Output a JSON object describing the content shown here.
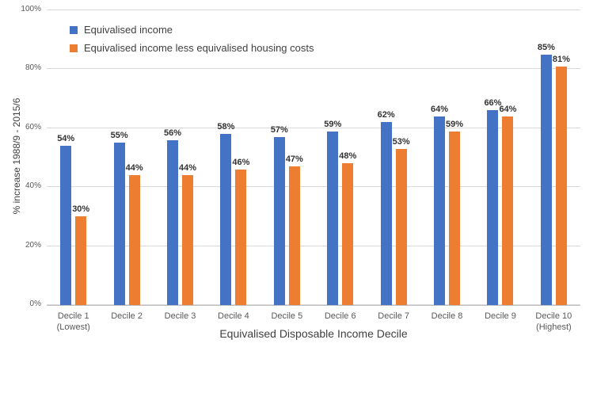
{
  "chart_data": {
    "type": "bar",
    "title": "",
    "xlabel": "Equivalised Disposable Income Decile",
    "ylabel": "% increase 1988/9 - 2015/6",
    "categories": [
      "Decile 1\n(Lowest)",
      "Decile 2",
      "Decile 3",
      "Decile 4",
      "Decile 5",
      "Decile 6",
      "Decile 7",
      "Decile 8",
      "Decile 9",
      "Decile 10\n(Highest)"
    ],
    "series": [
      {
        "name": "Equivalised income",
        "color": "#4472C4",
        "values": [
          54,
          55,
          56,
          58,
          57,
          59,
          62,
          64,
          66,
          85
        ]
      },
      {
        "name": "Equivalised income less equivalised housing costs",
        "color": "#ED7D31",
        "values": [
          30,
          44,
          44,
          46,
          47,
          48,
          53,
          59,
          64,
          81
        ]
      }
    ],
    "y_ticks": [
      0,
      20,
      40,
      60,
      80,
      100
    ],
    "y_tick_suffix": "%",
    "data_label_suffix": "%",
    "ylim": [
      0,
      100
    ],
    "grid": "horizontal",
    "legend_position": "top-left"
  },
  "colors": {
    "background": "#FFFFFF",
    "bar_blue": "#4472C4",
    "bar_orange": "#ED7D31",
    "gridline": "#D9D9D9",
    "axis_line": "#BFBFBF",
    "tick_label": "#595959",
    "data_label": "#333333",
    "axis_title": "#404040",
    "legend_text": "#404040"
  }
}
